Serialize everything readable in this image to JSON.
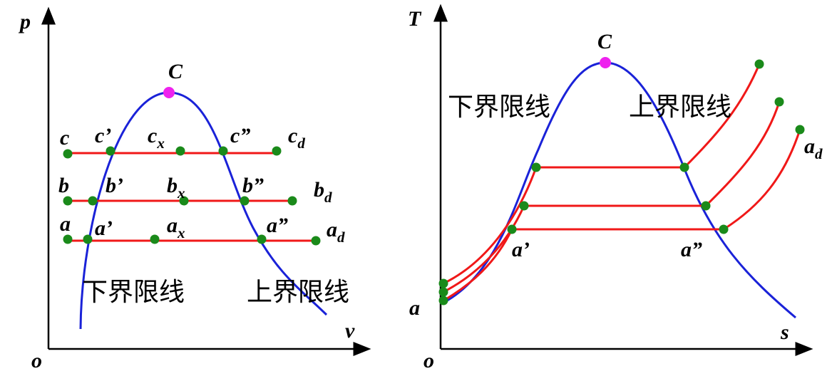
{
  "left": {
    "y_axis": "p",
    "x_axis": "v",
    "origin": "o",
    "critical": "C",
    "lower_boundary": "下界限线",
    "upper_boundary": "上界限线",
    "points": [
      {
        "base": "c"
      },
      {
        "base": "c’"
      },
      {
        "base": "c",
        "sub": "x"
      },
      {
        "base": "c”"
      },
      {
        "base": "c",
        "sub": "d"
      },
      {
        "base": "b"
      },
      {
        "base": "b’"
      },
      {
        "base": "b",
        "sub": "x"
      },
      {
        "base": "b”"
      },
      {
        "base": "b",
        "sub": "d"
      },
      {
        "base": "a"
      },
      {
        "base": "a’"
      },
      {
        "base": "a",
        "sub": "x"
      },
      {
        "base": "a”"
      },
      {
        "base": "a",
        "sub": "d"
      }
    ]
  },
  "right": {
    "y_axis": "T",
    "x_axis": "s",
    "origin": "o",
    "critical": "C",
    "lower_boundary": "下界限线",
    "upper_boundary": "上界限线",
    "points": [
      {
        "base": "a"
      },
      {
        "base": "a’"
      },
      {
        "base": "a”"
      },
      {
        "base": "a",
        "sub": "d"
      }
    ]
  }
}
